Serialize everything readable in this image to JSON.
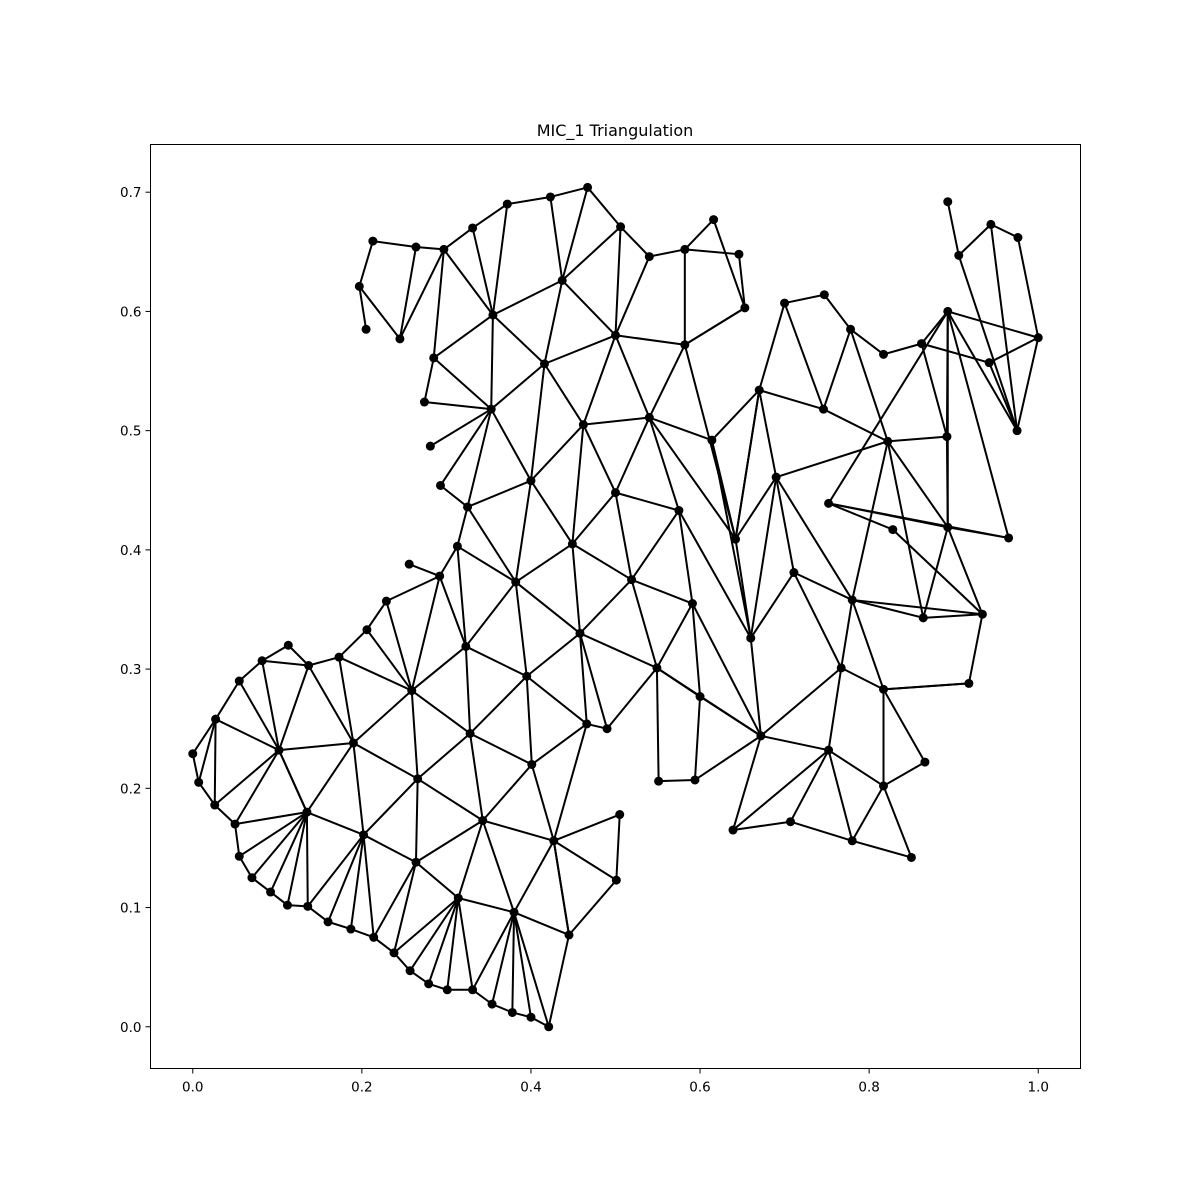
{
  "chart_data": {
    "type": "scatter",
    "title": "MIC_1 Triangulation",
    "xlabel": "",
    "ylabel": "",
    "xlim": [
      -0.05,
      1.05
    ],
    "ylim": [
      -0.035,
      0.74
    ],
    "xticks": [
      "0.0",
      "0.2",
      "0.4",
      "0.6",
      "0.8",
      "1.0"
    ],
    "yticks": [
      "0.0",
      "0.1",
      "0.2",
      "0.3",
      "0.4",
      "0.5",
      "0.6",
      "0.7"
    ],
    "grid": false,
    "color": "#000000",
    "points": [
      [
        0.0,
        0.229
      ],
      [
        0.007,
        0.205
      ],
      [
        0.026,
        0.186
      ],
      [
        0.05,
        0.17
      ],
      [
        0.055,
        0.143
      ],
      [
        0.07,
        0.125
      ],
      [
        0.092,
        0.113
      ],
      [
        0.112,
        0.102
      ],
      [
        0.136,
        0.101
      ],
      [
        0.16,
        0.088
      ],
      [
        0.187,
        0.082
      ],
      [
        0.214,
        0.075
      ],
      [
        0.238,
        0.062
      ],
      [
        0.257,
        0.047
      ],
      [
        0.279,
        0.036
      ],
      [
        0.301,
        0.031
      ],
      [
        0.331,
        0.031
      ],
      [
        0.354,
        0.019
      ],
      [
        0.378,
        0.012
      ],
      [
        0.4,
        0.008
      ],
      [
        0.421,
        0.0
      ],
      [
        0.445,
        0.077
      ],
      [
        0.501,
        0.123
      ],
      [
        0.505,
        0.178
      ],
      [
        0.027,
        0.258
      ],
      [
        0.055,
        0.29
      ],
      [
        0.082,
        0.307
      ],
      [
        0.113,
        0.32
      ],
      [
        0.102,
        0.232
      ],
      [
        0.135,
        0.18
      ],
      [
        0.137,
        0.303
      ],
      [
        0.173,
        0.31
      ],
      [
        0.19,
        0.238
      ],
      [
        0.202,
        0.161
      ],
      [
        0.206,
        0.333
      ],
      [
        0.229,
        0.357
      ],
      [
        0.256,
        0.388
      ],
      [
        0.259,
        0.282
      ],
      [
        0.264,
        0.138
      ],
      [
        0.266,
        0.208
      ],
      [
        0.292,
        0.378
      ],
      [
        0.314,
        0.108
      ],
      [
        0.313,
        0.403
      ],
      [
        0.323,
        0.319
      ],
      [
        0.328,
        0.246
      ],
      [
        0.343,
        0.173
      ],
      [
        0.38,
        0.096
      ],
      [
        0.382,
        0.373
      ],
      [
        0.395,
        0.294
      ],
      [
        0.401,
        0.22
      ],
      [
        0.427,
        0.156
      ],
      [
        0.466,
        0.254
      ],
      [
        0.49,
        0.25
      ],
      [
        0.458,
        0.33
      ],
      [
        0.449,
        0.405
      ],
      [
        0.4,
        0.458
      ],
      [
        0.325,
        0.436
      ],
      [
        0.293,
        0.454
      ],
      [
        0.281,
        0.487
      ],
      [
        0.274,
        0.524
      ],
      [
        0.285,
        0.561
      ],
      [
        0.353,
        0.518
      ],
      [
        0.416,
        0.556
      ],
      [
        0.462,
        0.505
      ],
      [
        0.5,
        0.448
      ],
      [
        0.519,
        0.375
      ],
      [
        0.549,
        0.301
      ],
      [
        0.551,
        0.206
      ],
      [
        0.594,
        0.207
      ],
      [
        0.6,
        0.277
      ],
      [
        0.591,
        0.355
      ],
      [
        0.575,
        0.433
      ],
      [
        0.54,
        0.511
      ],
      [
        0.5,
        0.58
      ],
      [
        0.437,
        0.626
      ],
      [
        0.355,
        0.597
      ],
      [
        0.297,
        0.652
      ],
      [
        0.264,
        0.654
      ],
      [
        0.213,
        0.659
      ],
      [
        0.197,
        0.621
      ],
      [
        0.205,
        0.585
      ],
      [
        0.245,
        0.577
      ],
      [
        0.331,
        0.67
      ],
      [
        0.372,
        0.69
      ],
      [
        0.423,
        0.696
      ],
      [
        0.467,
        0.704
      ],
      [
        0.506,
        0.671
      ],
      [
        0.54,
        0.646
      ],
      [
        0.582,
        0.652
      ],
      [
        0.616,
        0.677
      ],
      [
        0.646,
        0.648
      ],
      [
        0.653,
        0.603
      ],
      [
        0.582,
        0.572
      ],
      [
        0.614,
        0.492
      ],
      [
        0.642,
        0.409
      ],
      [
        0.66,
        0.326
      ],
      [
        0.672,
        0.244
      ],
      [
        0.639,
        0.165
      ],
      [
        0.707,
        0.172
      ],
      [
        0.752,
        0.232
      ],
      [
        0.78,
        0.156
      ],
      [
        0.85,
        0.142
      ],
      [
        0.817,
        0.202
      ],
      [
        0.866,
        0.222
      ],
      [
        0.817,
        0.283
      ],
      [
        0.918,
        0.288
      ],
      [
        0.767,
        0.301
      ],
      [
        0.78,
        0.358
      ],
      [
        0.711,
        0.381
      ],
      [
        0.864,
        0.343
      ],
      [
        0.934,
        0.346
      ],
      [
        0.828,
        0.417
      ],
      [
        0.893,
        0.419
      ],
      [
        0.965,
        0.41
      ],
      [
        0.752,
        0.439
      ],
      [
        0.69,
        0.461
      ],
      [
        0.67,
        0.534
      ],
      [
        0.7,
        0.607
      ],
      [
        0.747,
        0.614
      ],
      [
        0.746,
        0.518
      ],
      [
        0.778,
        0.585
      ],
      [
        0.817,
        0.564
      ],
      [
        0.822,
        0.491
      ],
      [
        0.892,
        0.495
      ],
      [
        0.862,
        0.573
      ],
      [
        0.893,
        0.6
      ],
      [
        0.942,
        0.557
      ],
      [
        0.975,
        0.5
      ],
      [
        1.0,
        0.578
      ],
      [
        0.976,
        0.662
      ],
      [
        0.944,
        0.673
      ],
      [
        0.906,
        0.647
      ],
      [
        0.893,
        0.692
      ]
    ],
    "edges": [
      [
        0,
        1
      ],
      [
        1,
        24
      ],
      [
        0,
        24
      ],
      [
        1,
        2
      ],
      [
        2,
        24
      ],
      [
        2,
        28
      ],
      [
        24,
        28
      ],
      [
        2,
        3
      ],
      [
        3,
        28
      ],
      [
        3,
        29
      ],
      [
        28,
        29
      ],
      [
        3,
        4
      ],
      [
        4,
        29
      ],
      [
        4,
        5
      ],
      [
        5,
        29
      ],
      [
        5,
        6
      ],
      [
        6,
        29
      ],
      [
        6,
        7
      ],
      [
        7,
        29
      ],
      [
        7,
        8
      ],
      [
        8,
        29
      ],
      [
        8,
        33
      ],
      [
        29,
        33
      ],
      [
        8,
        9
      ],
      [
        9,
        33
      ],
      [
        9,
        10
      ],
      [
        10,
        33
      ],
      [
        10,
        11
      ],
      [
        11,
        33
      ],
      [
        11,
        38
      ],
      [
        33,
        38
      ],
      [
        11,
        12
      ],
      [
        12,
        38
      ],
      [
        12,
        41
      ],
      [
        38,
        41
      ],
      [
        12,
        13
      ],
      [
        13,
        41
      ],
      [
        13,
        14
      ],
      [
        14,
        41
      ],
      [
        14,
        15
      ],
      [
        15,
        41
      ],
      [
        15,
        16
      ],
      [
        16,
        41
      ],
      [
        16,
        46
      ],
      [
        41,
        46
      ],
      [
        16,
        17
      ],
      [
        17,
        46
      ],
      [
        17,
        18
      ],
      [
        18,
        46
      ],
      [
        18,
        19
      ],
      [
        19,
        46
      ],
      [
        19,
        20
      ],
      [
        20,
        46
      ],
      [
        20,
        21
      ],
      [
        21,
        46
      ],
      [
        21,
        22
      ],
      [
        22,
        50
      ],
      [
        21,
        50
      ],
      [
        22,
        23
      ],
      [
        23,
        50
      ],
      [
        24,
        25
      ],
      [
        25,
        28
      ],
      [
        25,
        26
      ],
      [
        26,
        28
      ],
      [
        26,
        30
      ],
      [
        28,
        30
      ],
      [
        27,
        30
      ],
      [
        26,
        27
      ],
      [
        28,
        32
      ],
      [
        30,
        32
      ],
      [
        28,
        29
      ],
      [
        29,
        32
      ],
      [
        32,
        33
      ],
      [
        30,
        31
      ],
      [
        31,
        32
      ],
      [
        31,
        37
      ],
      [
        32,
        37
      ],
      [
        31,
        34
      ],
      [
        34,
        37
      ],
      [
        34,
        35
      ],
      [
        35,
        37
      ],
      [
        35,
        40
      ],
      [
        37,
        40
      ],
      [
        36,
        40
      ],
      [
        37,
        39
      ],
      [
        32,
        39
      ],
      [
        33,
        39
      ],
      [
        38,
        39
      ],
      [
        38,
        45
      ],
      [
        39,
        45
      ],
      [
        39,
        44
      ],
      [
        37,
        44
      ],
      [
        44,
        45
      ],
      [
        37,
        43
      ],
      [
        43,
        44
      ],
      [
        40,
        43
      ],
      [
        42,
        43
      ],
      [
        40,
        42
      ],
      [
        41,
        45
      ],
      [
        45,
        46
      ],
      [
        45,
        50
      ],
      [
        46,
        50
      ],
      [
        21,
        50
      ],
      [
        44,
        48
      ],
      [
        44,
        49
      ],
      [
        45,
        49
      ],
      [
        49,
        50
      ],
      [
        48,
        49
      ],
      [
        49,
        51
      ],
      [
        50,
        51
      ],
      [
        51,
        52
      ],
      [
        52,
        53
      ],
      [
        51,
        53
      ],
      [
        48,
        53
      ],
      [
        48,
        51
      ],
      [
        43,
        48
      ],
      [
        43,
        47
      ],
      [
        47,
        48
      ],
      [
        42,
        47
      ],
      [
        47,
        53
      ],
      [
        47,
        54
      ],
      [
        53,
        54
      ],
      [
        47,
        55
      ],
      [
        54,
        55
      ],
      [
        42,
        56
      ],
      [
        47,
        56
      ],
      [
        55,
        56
      ],
      [
        56,
        57
      ],
      [
        56,
        61
      ],
      [
        55,
        61
      ],
      [
        57,
        61
      ],
      [
        58,
        61
      ],
      [
        59,
        61
      ],
      [
        60,
        61
      ],
      [
        59,
        60
      ],
      [
        60,
        75
      ],
      [
        61,
        75
      ],
      [
        61,
        62
      ],
      [
        55,
        62
      ],
      [
        62,
        75
      ],
      [
        62,
        63
      ],
      [
        55,
        63
      ],
      [
        54,
        63
      ],
      [
        62,
        74
      ],
      [
        74,
        75
      ],
      [
        62,
        73
      ],
      [
        73,
        74
      ],
      [
        63,
        73
      ],
      [
        63,
        72
      ],
      [
        72,
        73
      ],
      [
        63,
        64
      ],
      [
        54,
        64
      ],
      [
        64,
        72
      ],
      [
        53,
        65
      ],
      [
        54,
        65
      ],
      [
        64,
        65
      ],
      [
        65,
        71
      ],
      [
        64,
        71
      ],
      [
        71,
        72
      ],
      [
        65,
        66
      ],
      [
        53,
        66
      ],
      [
        66,
        70
      ],
      [
        65,
        70
      ],
      [
        70,
        71
      ],
      [
        66,
        67
      ],
      [
        52,
        66
      ],
      [
        66,
        69
      ],
      [
        67,
        68
      ],
      [
        68,
        69
      ],
      [
        69,
        70
      ],
      [
        60,
        76
      ],
      [
        75,
        76
      ],
      [
        76,
        77
      ],
      [
        77,
        81
      ],
      [
        76,
        81
      ],
      [
        78,
        79
      ],
      [
        78,
        77
      ],
      [
        79,
        80
      ],
      [
        79,
        81
      ],
      [
        76,
        82
      ],
      [
        75,
        82
      ],
      [
        82,
        83
      ],
      [
        75,
        83
      ],
      [
        83,
        84
      ],
      [
        74,
        84
      ],
      [
        84,
        85
      ],
      [
        74,
        85
      ],
      [
        85,
        86
      ],
      [
        74,
        86
      ],
      [
        73,
        86
      ],
      [
        86,
        87
      ],
      [
        73,
        87
      ],
      [
        87,
        88
      ],
      [
        73,
        92
      ],
      [
        88,
        92
      ],
      [
        88,
        89
      ],
      [
        88,
        90
      ],
      [
        89,
        91
      ],
      [
        90,
        91
      ],
      [
        91,
        92
      ],
      [
        92,
        94
      ],
      [
        72,
        92
      ],
      [
        72,
        94
      ],
      [
        93,
        94
      ],
      [
        93,
        95
      ],
      [
        94,
        95
      ],
      [
        71,
        95
      ],
      [
        72,
        93
      ],
      [
        70,
        96
      ],
      [
        96,
        95
      ],
      [
        69,
        96
      ],
      [
        96,
        97
      ],
      [
        97,
        98
      ],
      [
        96,
        99
      ],
      [
        97,
        99
      ],
      [
        98,
        99
      ],
      [
        98,
        100
      ],
      [
        99,
        100
      ],
      [
        100,
        101
      ],
      [
        99,
        102
      ],
      [
        100,
        102
      ],
      [
        101,
        102
      ],
      [
        102,
        103
      ],
      [
        102,
        104
      ],
      [
        103,
        104
      ],
      [
        104,
        105
      ],
      [
        104,
        106
      ],
      [
        99,
        106
      ],
      [
        96,
        106
      ],
      [
        106,
        107
      ],
      [
        104,
        107
      ],
      [
        107,
        109
      ],
      [
        107,
        108
      ],
      [
        106,
        108
      ],
      [
        95,
        108
      ],
      [
        107,
        110
      ],
      [
        109,
        110
      ],
      [
        105,
        110
      ],
      [
        104,
        105
      ],
      [
        110,
        111
      ],
      [
        110,
        112
      ],
      [
        109,
        112
      ],
      [
        112,
        113
      ],
      [
        112,
        114
      ],
      [
        113,
        114
      ],
      [
        111,
        114
      ],
      [
        108,
        115
      ],
      [
        95,
        115
      ],
      [
        94,
        115
      ],
      [
        115,
        116
      ],
      [
        94,
        116
      ],
      [
        116,
        117
      ],
      [
        117,
        118
      ],
      [
        116,
        119
      ],
      [
        117,
        119
      ],
      [
        118,
        120
      ],
      [
        119,
        120
      ],
      [
        120,
        121
      ],
      [
        120,
        122
      ],
      [
        119,
        122
      ],
      [
        115,
        122
      ],
      [
        115,
        107
      ],
      [
        122,
        107
      ],
      [
        122,
        109
      ],
      [
        112,
        122
      ],
      [
        112,
        123
      ],
      [
        122,
        123
      ],
      [
        123,
        124
      ],
      [
        121,
        124
      ],
      [
        123,
        125
      ],
      [
        124,
        125
      ],
      [
        112,
        125
      ],
      [
        113,
        125
      ],
      [
        114,
        125
      ],
      [
        125,
        127
      ],
      [
        125,
        128
      ],
      [
        127,
        128
      ],
      [
        124,
        126
      ],
      [
        126,
        127
      ],
      [
        127,
        130
      ],
      [
        126,
        128
      ],
      [
        128,
        129
      ],
      [
        129,
        130
      ],
      [
        130,
        131
      ],
      [
        127,
        131
      ],
      [
        131,
        132
      ],
      [
        132,
        133
      ],
      [
        130,
        133
      ],
      [
        93,
        116
      ],
      [
        94,
        116
      ],
      [
        92,
        91
      ],
      [
        68,
        96
      ],
      [
        66,
        96
      ],
      [
        69,
        66
      ]
    ]
  }
}
